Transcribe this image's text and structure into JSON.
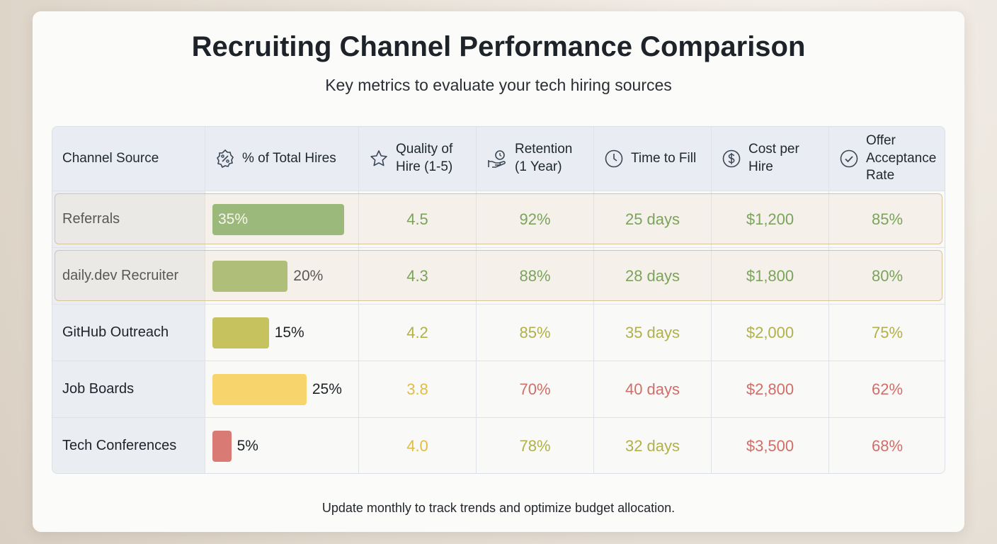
{
  "header": {
    "title": "Recruiting Channel Performance Comparison",
    "subtitle": "Key metrics to evaluate your tech hiring sources"
  },
  "table": {
    "headers": [
      "Channel Source",
      "% of Total Hires",
      "Quality of Hire (1-5)",
      "Retention (1 Year)",
      "Time to Fill",
      "Cost per Hire",
      "Offer Acceptance Rate"
    ],
    "rows": [
      {
        "channel": "Referrals",
        "highlight": true,
        "hires": {
          "value": 35,
          "label": "35%",
          "color": "#7aab5e"
        },
        "metrics": [
          {
            "text": "4.5",
            "color": "#4f8c33"
          },
          {
            "text": "92%",
            "color": "#4f8c33"
          },
          {
            "text": "25 days",
            "color": "#4f8c33"
          },
          {
            "text": "$1,200",
            "color": "#4f8c33"
          },
          {
            "text": "85%",
            "color": "#4f8c33"
          }
        ]
      },
      {
        "channel": "daily.dev Recruiter",
        "highlight": true,
        "hires": {
          "value": 20,
          "label": "20%",
          "color": "#98b35c"
        },
        "metrics": [
          {
            "text": "4.3",
            "color": "#4f8c33"
          },
          {
            "text": "88%",
            "color": "#4f8c33"
          },
          {
            "text": "28 days",
            "color": "#4f8c33"
          },
          {
            "text": "$1,800",
            "color": "#4f8c33"
          },
          {
            "text": "80%",
            "color": "#4f8c33"
          }
        ]
      },
      {
        "channel": "GitHub Outreach",
        "highlight": false,
        "hires": {
          "value": 15,
          "label": "15%",
          "color": "#c6c25e"
        },
        "metrics": [
          {
            "text": "4.2",
            "color": "#b2b04a"
          },
          {
            "text": "85%",
            "color": "#b2b04a"
          },
          {
            "text": "35 days",
            "color": "#b2b04a"
          },
          {
            "text": "$2,000",
            "color": "#b2b04a"
          },
          {
            "text": "75%",
            "color": "#b2b04a"
          }
        ]
      },
      {
        "channel": "Job Boards",
        "highlight": false,
        "hires": {
          "value": 25,
          "label": "25%",
          "color": "#f8d46d"
        },
        "metrics": [
          {
            "text": "3.8",
            "color": "#dfbd45"
          },
          {
            "text": "70%",
            "color": "#d06e68"
          },
          {
            "text": "40 days",
            "color": "#d06e68"
          },
          {
            "text": "$2,800",
            "color": "#d06e68"
          },
          {
            "text": "62%",
            "color": "#d06e68"
          }
        ]
      },
      {
        "channel": "Tech Conferences",
        "highlight": false,
        "hires": {
          "value": 5,
          "label": "5%",
          "color": "#d97a75"
        },
        "metrics": [
          {
            "text": "4.0",
            "color": "#dfbd45"
          },
          {
            "text": "78%",
            "color": "#b2b04a"
          },
          {
            "text": "32 days",
            "color": "#b2b04a"
          },
          {
            "text": "$3,500",
            "color": "#d06e68"
          },
          {
            "text": "68%",
            "color": "#d06e68"
          }
        ]
      }
    ]
  },
  "footer": "Update monthly to track trends and optimize budget allocation."
}
